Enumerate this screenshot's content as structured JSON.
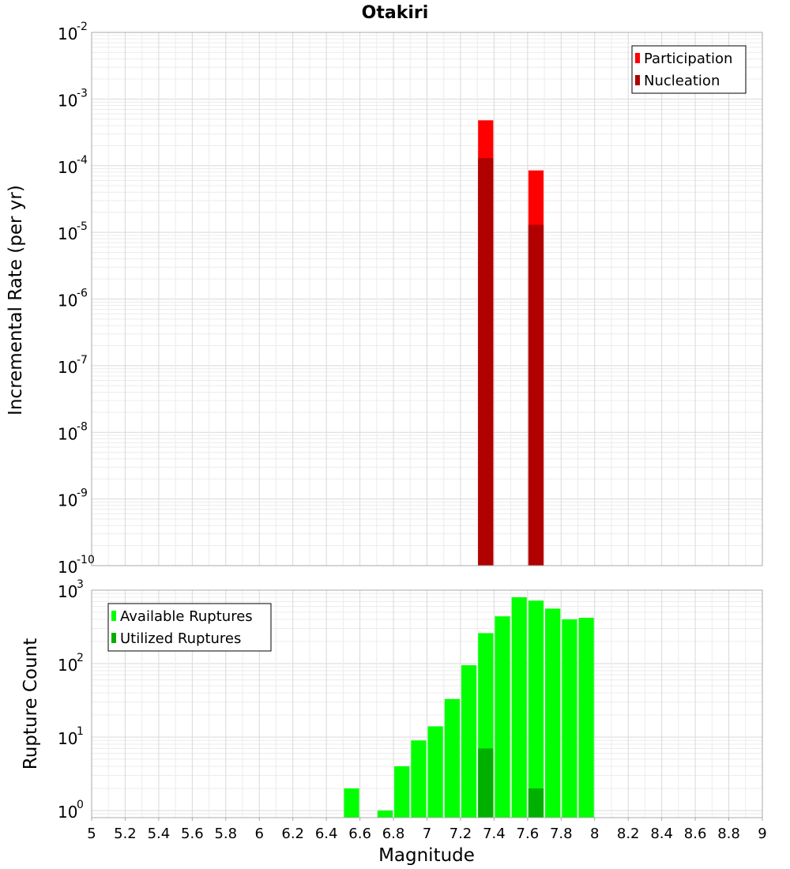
{
  "chart_data": [
    {
      "type": "bar",
      "title": "Otakiri",
      "xlabel": "",
      "ylabel": "Incremental Rate (per yr)",
      "yscale": "log",
      "ylim": [
        1e-10,
        0.01
      ],
      "xlim": [
        5,
        9
      ],
      "bar_width": 0.1,
      "grid": true,
      "legend_position": "top-right",
      "y_tick_base": "10",
      "y_tick_exponents": [
        "-10",
        "-9",
        "-8",
        "-7",
        "-6",
        "-5",
        "-4",
        "-3",
        "-2"
      ],
      "series": [
        {
          "name": "Participation",
          "color": "#ff0000",
          "points": [
            {
              "x": 7.35,
              "y": 0.00048
            },
            {
              "x": 7.65,
              "y": 8.5e-05
            }
          ]
        },
        {
          "name": "Nucleation",
          "color": "#b00000",
          "points": [
            {
              "x": 7.35,
              "y": 0.00013
            },
            {
              "x": 7.65,
              "y": 1.3e-05
            }
          ]
        }
      ]
    },
    {
      "type": "bar",
      "title": "",
      "xlabel": "Magnitude",
      "ylabel": "Rupture Count",
      "yscale": "log",
      "ylim": [
        0.8,
        1000
      ],
      "xlim": [
        5,
        9
      ],
      "bar_width": 0.1,
      "grid": true,
      "legend_position": "top-left",
      "y_tick_base": "10",
      "y_tick_exponents": [
        "0",
        "1",
        "2",
        "3"
      ],
      "x_ticks": [
        "5",
        "5.2",
        "5.4",
        "5.6",
        "5.8",
        "6",
        "6.2",
        "6.4",
        "6.6",
        "6.8",
        "7",
        "7.2",
        "7.4",
        "7.6",
        "7.8",
        "8",
        "8.2",
        "8.4",
        "8.6",
        "8.8",
        "9"
      ],
      "series": [
        {
          "name": "Available Ruptures",
          "color": "#00ff00",
          "points": [
            {
              "x": 6.55,
              "y": 2
            },
            {
              "x": 6.75,
              "y": 1
            },
            {
              "x": 6.85,
              "y": 4
            },
            {
              "x": 6.95,
              "y": 9
            },
            {
              "x": 7.05,
              "y": 14
            },
            {
              "x": 7.15,
              "y": 33
            },
            {
              "x": 7.25,
              "y": 95
            },
            {
              "x": 7.35,
              "y": 260
            },
            {
              "x": 7.45,
              "y": 440
            },
            {
              "x": 7.55,
              "y": 800
            },
            {
              "x": 7.65,
              "y": 720
            },
            {
              "x": 7.75,
              "y": 560
            },
            {
              "x": 7.85,
              "y": 400
            },
            {
              "x": 7.95,
              "y": 420
            }
          ]
        },
        {
          "name": "Utilized Ruptures",
          "color": "#00b000",
          "points": [
            {
              "x": 7.35,
              "y": 7
            },
            {
              "x": 7.65,
              "y": 2
            }
          ]
        }
      ]
    }
  ]
}
